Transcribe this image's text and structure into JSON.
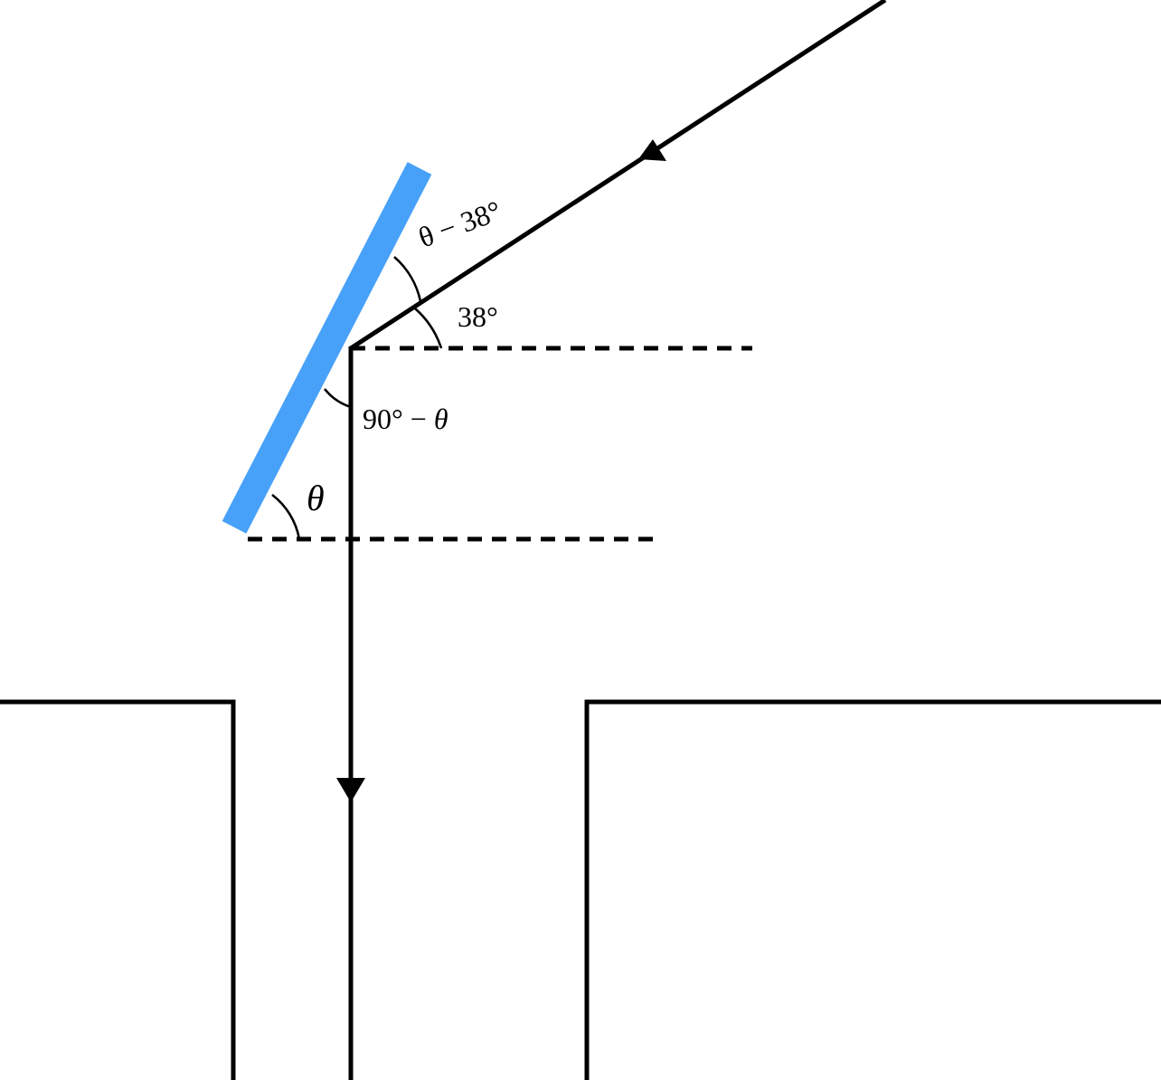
{
  "diagram": {
    "labels": {
      "theta_minus_38": {
        "theta": "θ",
        "rest": " − 38°"
      },
      "angle_38": "38°",
      "ninety_minus_theta": {
        "num": "90° − ",
        "theta": "θ"
      },
      "theta": "θ"
    },
    "colors": {
      "mirror": "#48A1F8",
      "lines": "#000000",
      "background": "#ffffff"
    }
  }
}
